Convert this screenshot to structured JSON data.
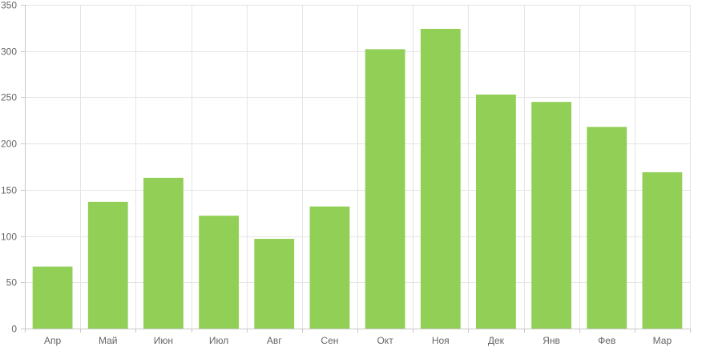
{
  "chart_data": {
    "type": "bar",
    "title": "",
    "xlabel": "",
    "ylabel": "",
    "categories": [
      "Апр",
      "Май",
      "Июн",
      "Июл",
      "Авг",
      "Сен",
      "Окт",
      "Ноя",
      "Дек",
      "Янв",
      "Фев",
      "Мар"
    ],
    "values": [
      67,
      137,
      163,
      122,
      97,
      132,
      302,
      324,
      253,
      245,
      218,
      169
    ],
    "ylim": [
      0,
      350
    ],
    "yticks": [
      0,
      50,
      100,
      150,
      200,
      250,
      300,
      350
    ],
    "grid": true,
    "legend": "none",
    "bar_color": "#92cf56"
  }
}
